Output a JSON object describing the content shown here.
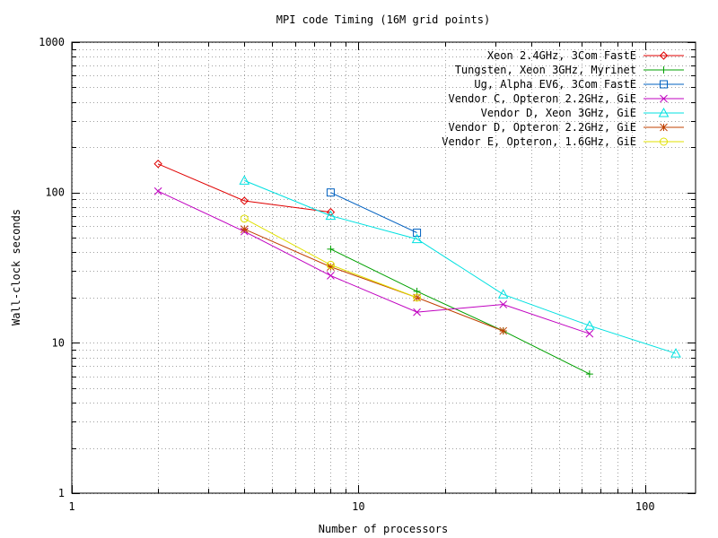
{
  "chart_data": {
    "type": "line",
    "title": "MPI code Timing (16M grid points)",
    "xlabel": "Number of processors",
    "ylabel": "Wall-clock seconds",
    "xscale": "log",
    "yscale": "log",
    "xlim": [
      1,
      150
    ],
    "ylim": [
      1,
      1000
    ],
    "grid": true,
    "legend_position": "top-right",
    "x_ticks": [
      {
        "value": 1,
        "label": "1"
      },
      {
        "value": 10,
        "label": "10"
      },
      {
        "value": 100,
        "label": "100"
      }
    ],
    "y_ticks": [
      {
        "value": 1,
        "label": "1"
      },
      {
        "value": 10,
        "label": "10"
      },
      {
        "value": 100,
        "label": "100"
      },
      {
        "value": 1000,
        "label": "1000"
      }
    ],
    "series": [
      {
        "name": "Xeon 2.4GHz, 3Com FastE",
        "color": "#e00000",
        "marker": "diamond",
        "x": [
          2,
          4,
          8
        ],
        "y": [
          155,
          88,
          74
        ]
      },
      {
        "name": "Tungsten, Xeon 3GHz, Myrinet",
        "color": "#00a000",
        "marker": "plus",
        "x": [
          8,
          16,
          32,
          64
        ],
        "y": [
          42,
          22,
          12,
          6.2
        ]
      },
      {
        "name": "Ug, Alpha EV6, 3Com FastE",
        "color": "#0060c0",
        "marker": "square",
        "x": [
          8,
          16
        ],
        "y": [
          100,
          54
        ]
      },
      {
        "name": "Vendor C, Opteron 2.2GHz, GiE",
        "color": "#c000c0",
        "marker": "x",
        "x": [
          2,
          4,
          8,
          16,
          32,
          64
        ],
        "y": [
          102,
          55,
          28,
          16,
          18,
          11.5
        ]
      },
      {
        "name": "Vendor D, Xeon 3GHz, GiE",
        "color": "#00e0e0",
        "marker": "triangle",
        "x": [
          4,
          8,
          16,
          32,
          64,
          128
        ],
        "y": [
          120,
          70,
          49,
          21,
          13,
          8.5
        ]
      },
      {
        "name": "Vendor D, Opteron 2.2GHz, GiE",
        "color": "#c04000",
        "marker": "star",
        "x": [
          4,
          8,
          16,
          32
        ],
        "y": [
          57,
          32,
          20,
          12
        ]
      },
      {
        "name": "Vendor E, Opteron, 1.6GHz, GiE",
        "color": "#e0e000",
        "marker": "circle",
        "x": [
          4,
          8,
          16
        ],
        "y": [
          67,
          33,
          20
        ]
      }
    ]
  }
}
